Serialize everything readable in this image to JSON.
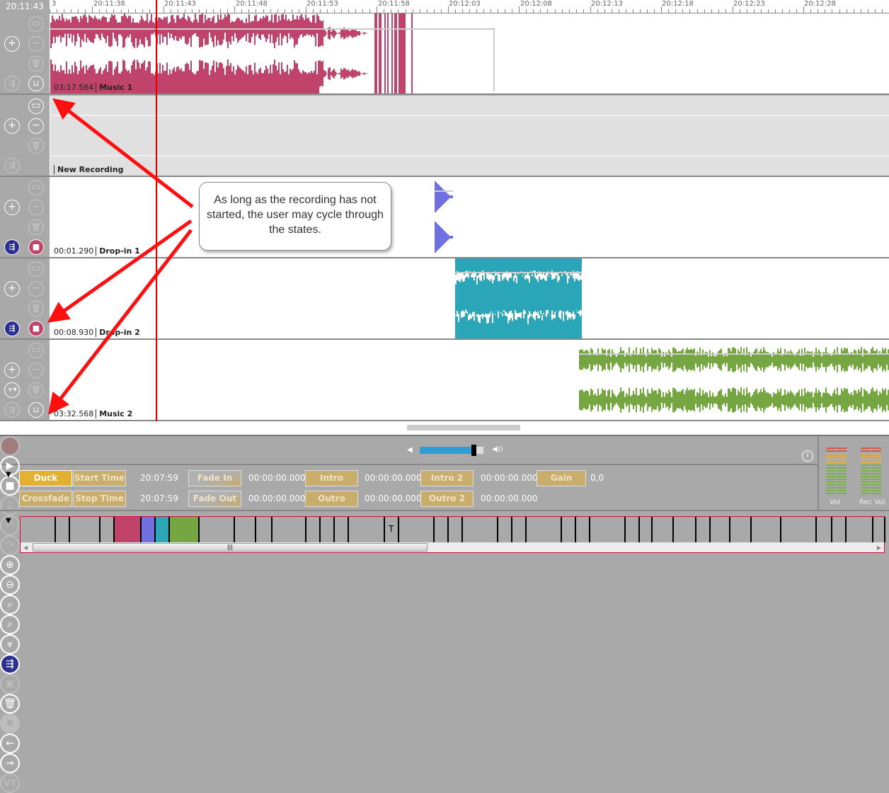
{
  "ruler": {
    "clock": "20:11:43",
    "labels": [
      "3",
      "20:11:38",
      "20:11:43",
      "20:11:48",
      "20:11:53",
      "20:11:58",
      "20:12:03",
      "20:12:08",
      "20:12:13",
      "20:12:18",
      "20:12:23",
      "20:12:28"
    ]
  },
  "tracks": [
    {
      "time": "03:17.564",
      "name": "Music 1",
      "color": "#c0436c"
    },
    {
      "time": "",
      "name": "New Recording",
      "color": "#e0e0e0"
    },
    {
      "time": "00:01.290",
      "name": "Drop-in 1",
      "color": "#7070e0"
    },
    {
      "time": "00:08.930",
      "name": "Drop-in 2",
      "color": "#2aa6b8"
    },
    {
      "time": "03:32.568",
      "name": "Music 2",
      "color": "#76a642"
    }
  ],
  "callout": "As long as the recording has not started, the user may cycle through the states.",
  "toolbar": {
    "vt": "VT",
    "volume_level": 0.85
  },
  "props": {
    "duck": "Duck",
    "start_time": "Start Time",
    "start_val": "20:07:59",
    "fade_in": "Fade In",
    "fade_in_val": "00:00:00.000",
    "intro": "Intro",
    "intro_val": "00:00:00.000",
    "intro2": "Intro 2",
    "intro2_val": "00:00:00.000",
    "gain": "Gain",
    "gain_val": "0,0",
    "crossfade": "Crossfade",
    "stop_time": "Stop Time",
    "stop_val": "20:07:59",
    "fade_out": "Fade Out",
    "fade_out_val": "00:00:00.000",
    "outro": "Outro",
    "outro_val": "00:00:00.000",
    "outro2": "Outro 2",
    "outro2_val": "00:00:00.000"
  },
  "meters": {
    "vol": "Vol",
    "rec_vol": "Rec Vol"
  },
  "strip": {
    "marker": "T",
    "accent": "#d0103a"
  },
  "colors": {
    "playhead": "#e00000",
    "duck": "#e3b02f",
    "prop_button": "#c8ad6c"
  }
}
